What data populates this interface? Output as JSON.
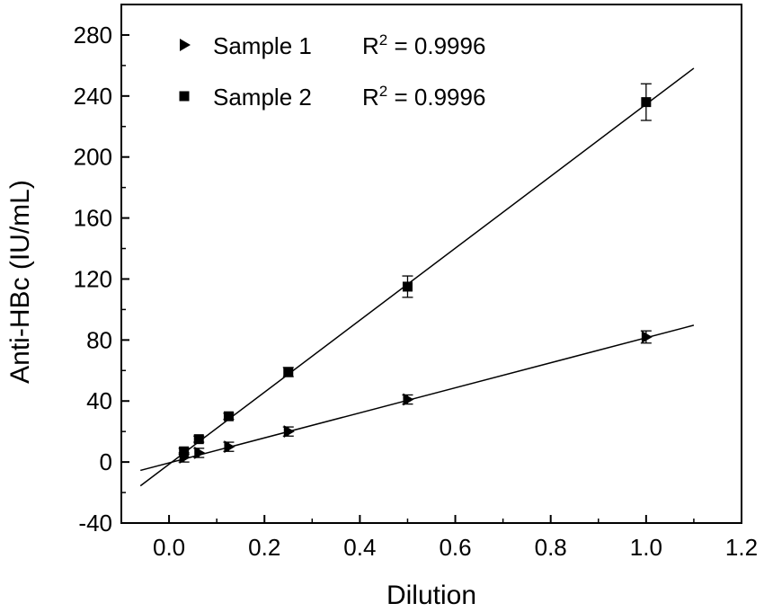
{
  "chart_data": {
    "type": "scatter",
    "xlabel": "Dilution",
    "ylabel": "Anti-HBc (IU/mL)",
    "xlim": [
      -0.1,
      1.2
    ],
    "ylim": [
      -40,
      300
    ],
    "x_ticks": [
      0.0,
      0.2,
      0.4,
      0.6,
      0.8,
      1.0,
      1.2
    ],
    "x_tick_labels": [
      "0.0",
      "0.2",
      "0.4",
      "0.6",
      "0.8",
      "1.0",
      "1.2"
    ],
    "y_ticks": [
      -40,
      0,
      40,
      80,
      120,
      160,
      200,
      240,
      280
    ],
    "y_tick_labels": [
      "-40",
      "0",
      "40",
      "80",
      "120",
      "160",
      "200",
      "240",
      "280"
    ],
    "grid": false,
    "legend_position": "top-left",
    "series": [
      {
        "name": "Sample 1",
        "marker": "triangle-right",
        "r2_label": "R",
        "r2_sup": "2",
        "r2_value": " = 0.9996",
        "x": [
          0.03125,
          0.0625,
          0.125,
          0.25,
          0.5,
          1.0
        ],
        "y": [
          3,
          6,
          10,
          20,
          41,
          82
        ],
        "error": [
          3,
          3,
          3,
          3,
          3,
          4
        ],
        "fit": {
          "x": [
            -0.06,
            1.1
          ],
          "y": [
            -5.5,
            89.7
          ]
        }
      },
      {
        "name": "Sample 2",
        "marker": "square",
        "r2_label": "R",
        "r2_sup": "2",
        "r2_value": " = 0.9996",
        "x": [
          0.03125,
          0.0625,
          0.125,
          0.25,
          0.5,
          1.0
        ],
        "y": [
          7,
          15,
          30,
          59,
          115,
          236
        ],
        "error": [
          2,
          2,
          2,
          3,
          7,
          12
        ],
        "fit": {
          "x": [
            -0.06,
            1.1
          ],
          "y": [
            -15.6,
            258.2
          ]
        }
      }
    ]
  }
}
